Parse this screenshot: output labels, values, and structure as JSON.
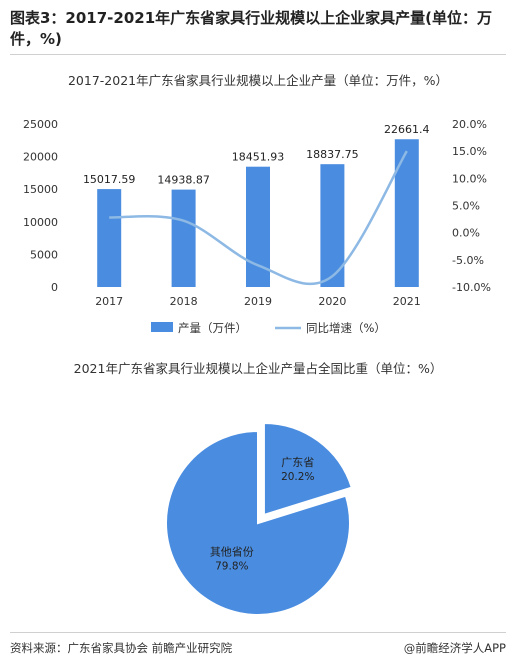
{
  "figure_title": "图表3：2017-2021年广东省家具行业规模以上企业家具产量(单位：万件，%)",
  "footer": {
    "source": "资料来源：广东省家具协会 前瞻产业研究院",
    "brand": "@前瞻经济学人APP"
  },
  "chart_data": [
    {
      "type": "bar",
      "title": "2017-2021年广东省家具行业规模以上企业产量（单位：万件，%）",
      "categories": [
        "2017",
        "2018",
        "2019",
        "2020",
        "2021"
      ],
      "series": [
        {
          "name": "产量（万件）",
          "type": "bar",
          "axis": "left",
          "values": [
            15017.59,
            14938.87,
            18451.93,
            18837.75,
            22661.4
          ],
          "labels": [
            "15017.59",
            "14938.87",
            "18451.93",
            "18837.75",
            "22661.4"
          ]
        },
        {
          "name": "同比增速（%）",
          "type": "line",
          "axis": "right",
          "values": [
            2.8,
            2.2,
            -6.0,
            -8.0,
            15.0
          ]
        }
      ],
      "y_left": {
        "ticks": [
          "0",
          "5000",
          "10000",
          "15000",
          "20000",
          "25000"
        ],
        "ylim": [
          0,
          25000
        ]
      },
      "y_right": {
        "ticks": [
          "-10.0%",
          "-5.0%",
          "0.0%",
          "5.0%",
          "10.0%",
          "15.0%",
          "20.0%"
        ],
        "ylim": [
          -10,
          20
        ]
      },
      "legend": "bottom",
      "colors": {
        "bar": "#4a8de0",
        "line": "#8db9e4"
      }
    },
    {
      "type": "pie",
      "title": "2021年广东省家具行业规模以上企业产量占全国比重（单位：%）",
      "slices": [
        {
          "name": "广东省",
          "value": 20.2,
          "label": "20.2%",
          "exploded": true
        },
        {
          "name": "其他省份",
          "value": 79.8,
          "label": "79.8%"
        }
      ],
      "colors": {
        "slice": "#4a8de0"
      }
    }
  ]
}
